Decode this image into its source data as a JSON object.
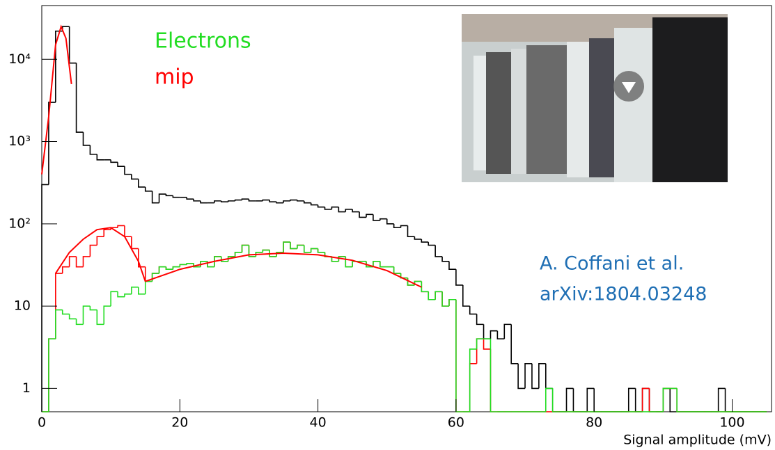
{
  "chart_data": {
    "type": "histogram",
    "xlabel": "Signal amplitude (mV)",
    "log_y": true,
    "xlim": [
      0,
      105.7
    ],
    "ylim": [
      0.52,
      45000
    ],
    "xticks": [
      0,
      20,
      40,
      60,
      80,
      100
    ],
    "yticks": [
      1,
      10,
      {
        "value": 100,
        "label": "10²"
      },
      {
        "value": 1000,
        "label": "10³"
      },
      {
        "value": 10000,
        "label": "10⁴"
      }
    ],
    "bins": [
      0,
      1,
      2,
      3,
      4,
      5,
      6,
      7,
      8,
      9,
      10,
      11,
      12,
      13,
      14,
      15,
      16,
      17,
      18,
      19,
      20,
      21,
      22,
      23,
      24,
      25,
      26,
      27,
      28,
      29,
      30,
      31,
      32,
      33,
      34,
      35,
      36,
      37,
      38,
      39,
      40,
      41,
      42,
      43,
      44,
      45,
      46,
      47,
      48,
      49,
      50,
      51,
      52,
      53,
      54,
      55,
      56,
      57,
      58,
      59,
      60,
      61,
      62,
      63,
      64,
      65,
      66,
      67,
      68,
      69,
      70,
      71,
      72,
      73,
      74,
      75,
      76,
      77,
      78,
      79,
      80,
      81,
      82,
      83,
      84,
      85,
      86,
      87,
      88,
      89,
      90,
      91,
      92,
      93,
      94,
      95,
      96,
      97,
      98,
      99,
      100,
      101,
      102,
      103,
      104,
      105
    ],
    "series": [
      {
        "color": "#000000",
        "values": [
          300,
          3000,
          22000,
          25000,
          9000,
          1300,
          900,
          700,
          600,
          600,
          560,
          500,
          400,
          350,
          280,
          250,
          180,
          230,
          220,
          210,
          210,
          200,
          190,
          180,
          180,
          190,
          185,
          190,
          195,
          200,
          190,
          190,
          195,
          185,
          180,
          190,
          195,
          190,
          180,
          170,
          160,
          150,
          160,
          140,
          150,
          140,
          120,
          130,
          110,
          115,
          100,
          90,
          95,
          70,
          65,
          60,
          55,
          40,
          35,
          28,
          18,
          10,
          8,
          6,
          4,
          5,
          4,
          6,
          2,
          1,
          2,
          1,
          2,
          1,
          0,
          0,
          1,
          0,
          0,
          1,
          0,
          0,
          0,
          0,
          0,
          1,
          0,
          1,
          0,
          0,
          1,
          0,
          0,
          0,
          0,
          0,
          0,
          0,
          1,
          0,
          0,
          0,
          0,
          0,
          0
        ]
      },
      {
        "name": "mip",
        "color": "#ff0000",
        "values": [
          0,
          4,
          25,
          30,
          40,
          30,
          40,
          55,
          70,
          85,
          90,
          95,
          70,
          50,
          30,
          20,
          25,
          30,
          28,
          30,
          32,
          33,
          30,
          35,
          30,
          40,
          35,
          40,
          45,
          55,
          40,
          45,
          48,
          40,
          45,
          60,
          50,
          55,
          45,
          50,
          45,
          40,
          35,
          40,
          30,
          35,
          35,
          30,
          35,
          30,
          30,
          25,
          22,
          18,
          20,
          15,
          12,
          15,
          10,
          12,
          0,
          0,
          2,
          4,
          3,
          0,
          0,
          0,
          0,
          0,
          0,
          0,
          0,
          0,
          0,
          0,
          0,
          0,
          0,
          0,
          0,
          0,
          0,
          0,
          0,
          0,
          0,
          1,
          0,
          0,
          1,
          1,
          0,
          0,
          0,
          0,
          0,
          0,
          0,
          0,
          0,
          0,
          0,
          0,
          0
        ]
      },
      {
        "name": "Electrons",
        "color": "#22dd22",
        "values": [
          0,
          4,
          9,
          8,
          7,
          6,
          10,
          9,
          6,
          10,
          15,
          13,
          14,
          17,
          14,
          20,
          25,
          30,
          28,
          30,
          32,
          33,
          30,
          35,
          30,
          40,
          35,
          40,
          45,
          55,
          40,
          45,
          48,
          40,
          45,
          60,
          50,
          55,
          45,
          50,
          45,
          40,
          35,
          40,
          30,
          35,
          35,
          30,
          35,
          30,
          30,
          25,
          22,
          18,
          20,
          15,
          12,
          15,
          10,
          12,
          0,
          0,
          3,
          4,
          4,
          0,
          0,
          0,
          0,
          0,
          0,
          0,
          0,
          1,
          0,
          0,
          0,
          0,
          0,
          0,
          0,
          0,
          0,
          0,
          0,
          0,
          0,
          0,
          0,
          0,
          1,
          1,
          0,
          0,
          0,
          0,
          0,
          0,
          0,
          0,
          0,
          0,
          0,
          0,
          0
        ]
      }
    ],
    "fits": [
      {
        "color": "#ff0000",
        "x": [
          0,
          1,
          2,
          2.8,
          3.5,
          4.3
        ],
        "values": [
          400,
          2000,
          15000,
          25000,
          18000,
          5000
        ]
      },
      {
        "color": "#ff0000",
        "x": [
          2,
          4,
          6,
          8,
          10,
          12,
          14,
          15
        ],
        "values": [
          25,
          45,
          65,
          85,
          90,
          70,
          35,
          20
        ]
      },
      {
        "color": "#ff0000",
        "x": [
          15,
          20,
          25,
          30,
          35,
          40,
          45,
          50,
          55
        ],
        "values": [
          20,
          28,
          35,
          42,
          44,
          42,
          36,
          27,
          17
        ]
      }
    ],
    "annotations": {
      "color": "#1f6fb4",
      "lines": [
        "A. Coffani et al.",
        "arXiv:1804.03248"
      ]
    }
  }
}
